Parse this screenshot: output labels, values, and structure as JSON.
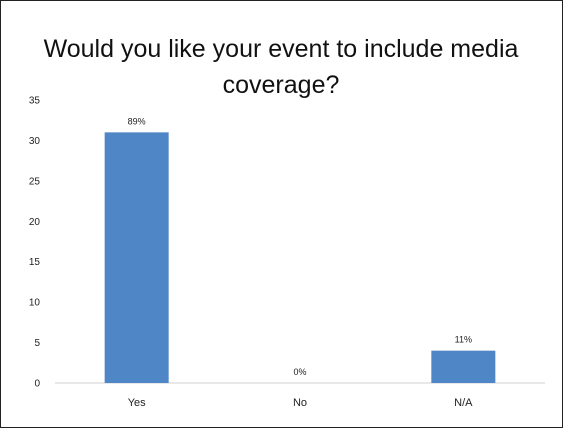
{
  "chart_data": {
    "type": "bar",
    "title": "Would you like your event to include media coverage?",
    "categories": [
      "Yes",
      "No",
      "N/A"
    ],
    "values": [
      31,
      0,
      4
    ],
    "data_labels": [
      "89%",
      "0%",
      "11%"
    ],
    "ylim": [
      0,
      35
    ],
    "yticks": [
      0,
      5,
      10,
      15,
      20,
      25,
      30,
      35
    ],
    "xlabel": "",
    "ylabel": "",
    "grid": false,
    "bar_color": "#4f86c6"
  }
}
